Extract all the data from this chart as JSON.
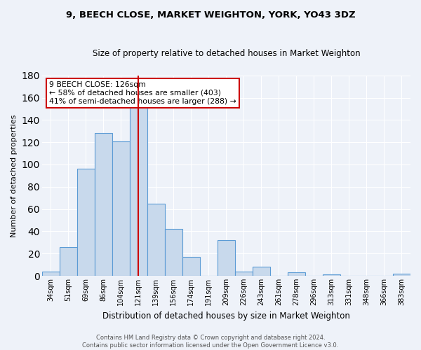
{
  "title": "9, BEECH CLOSE, MARKET WEIGHTON, YORK, YO43 3DZ",
  "subtitle": "Size of property relative to detached houses in Market Weighton",
  "xlabel": "Distribution of detached houses by size in Market Weighton",
  "ylabel": "Number of detached properties",
  "footer_line1": "Contains HM Land Registry data © Crown copyright and database right 2024.",
  "footer_line2": "Contains public sector information licensed under the Open Government Licence v3.0.",
  "bar_labels": [
    "34sqm",
    "51sqm",
    "69sqm",
    "86sqm",
    "104sqm",
    "121sqm",
    "139sqm",
    "156sqm",
    "174sqm",
    "191sqm",
    "209sqm",
    "226sqm",
    "243sqm",
    "261sqm",
    "278sqm",
    "296sqm",
    "313sqm",
    "331sqm",
    "348sqm",
    "366sqm",
    "383sqm"
  ],
  "bar_values": [
    4,
    26,
    96,
    128,
    121,
    152,
    65,
    42,
    17,
    0,
    32,
    4,
    8,
    0,
    3,
    0,
    1,
    0,
    0,
    0,
    2
  ],
  "bar_color_face": "#c8d9ec",
  "bar_color_edge": "#5b9bd5",
  "ylim": [
    0,
    180
  ],
  "yticks": [
    0,
    20,
    40,
    60,
    80,
    100,
    120,
    140,
    160,
    180
  ],
  "property_line_index": 5,
  "property_line_color": "#cc0000",
  "annotation_title": "9 BEECH CLOSE: 126sqm",
  "annotation_line1": "← 58% of detached houses are smaller (403)",
  "annotation_line2": "41% of semi-detached houses are larger (288) →",
  "annotation_box_facecolor": "#ffffff",
  "annotation_box_edgecolor": "#cc0000",
  "background_color": "#eef2f9",
  "grid_color": "#ffffff",
  "title_fontsize": 9.5,
  "subtitle_fontsize": 8.5,
  "ylabel_fontsize": 8,
  "xlabel_fontsize": 8.5,
  "tick_fontsize": 7,
  "footer_fontsize": 6,
  "annotation_fontsize": 7.8
}
